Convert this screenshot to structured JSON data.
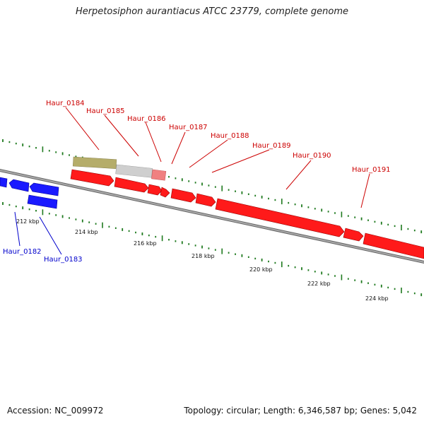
{
  "title": "Herpetosiphon aurantiacus ATCC 23779, complete genome",
  "footer": {
    "accession": "Accession: NC_009972",
    "summary": "Topology: circular; Length: 6,346,587 bp; Genes: 5,042"
  },
  "colors": {
    "forward_gene": "#ff1a1a",
    "reverse_gene": "#1a1aff",
    "backbone": "#8c8c8c",
    "tick": "#1f7a1f",
    "label_forward": "#cc0000",
    "label_reverse": "#0000cc",
    "feature_olive": "#b5ad6a",
    "feature_grey": "#cfcfcf",
    "feature_pink": "#f08080"
  },
  "scale_labels": [
    "212 kbp",
    "214 kbp",
    "216 kbp",
    "218 kbp",
    "220 kbp",
    "222 kbp",
    "224 kbp"
  ],
  "gene_labels_forward": [
    "Haur_0184",
    "Haur_0185",
    "Haur_0186",
    "Haur_0187",
    "Haur_0188",
    "Haur_0189",
    "Haur_0190",
    "Haur_0191"
  ],
  "gene_labels_reverse": [
    "Haur_0182",
    "Haur_0183"
  ]
}
